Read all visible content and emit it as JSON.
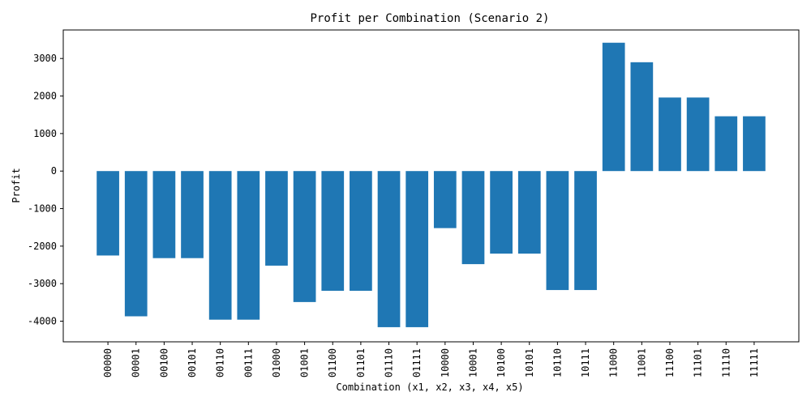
{
  "chart_data": {
    "type": "bar",
    "title": "Profit per Combination (Scenario 2)",
    "xlabel": "Combination (x1, x2, x3, x4, x5)",
    "ylabel": "Profit",
    "categories": [
      "00000",
      "00001",
      "00100",
      "00101",
      "00110",
      "00111",
      "01000",
      "01001",
      "01100",
      "01101",
      "01110",
      "01111",
      "10000",
      "10001",
      "10100",
      "10101",
      "10110",
      "10111",
      "11000",
      "11001",
      "11100",
      "11101",
      "11110",
      "11111"
    ],
    "values": [
      -2250,
      -3870,
      -2320,
      -2320,
      -3960,
      -3960,
      -2520,
      -3490,
      -3190,
      -3190,
      -4160,
      -4160,
      -1520,
      -2480,
      -2200,
      -2200,
      -3170,
      -3170,
      3420,
      2900,
      1960,
      1960,
      1460,
      1460
    ],
    "ylim": [
      -4550,
      3760
    ],
    "yticks": [
      -4000,
      -3000,
      -2000,
      -1000,
      0,
      1000,
      2000,
      3000
    ],
    "bar_color": "#1f77b4",
    "grid": false
  }
}
